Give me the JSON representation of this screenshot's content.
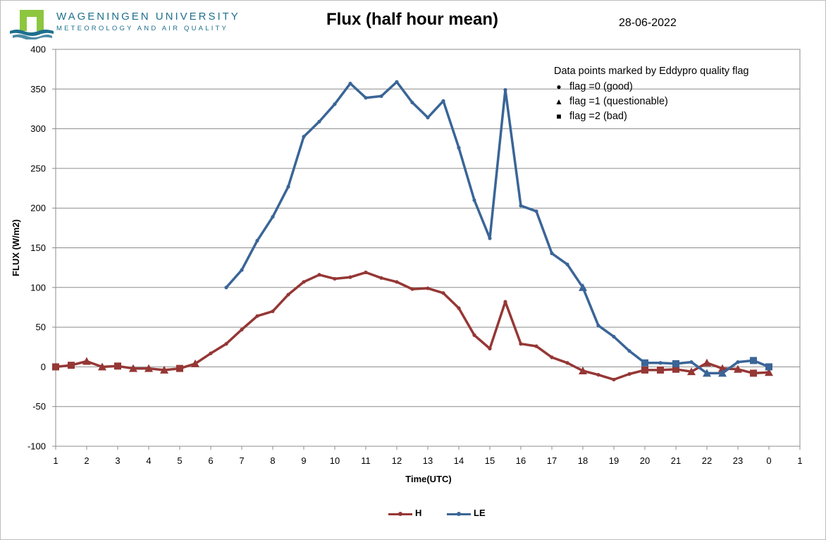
{
  "header": {
    "university": "WAGENINGEN UNIVERSITY",
    "department": "METEOROLOGY AND AIR QUALITY",
    "date": "28-06-2022"
  },
  "annotation": {
    "heading": "Data points marked by  Eddypro quality flag",
    "items": [
      {
        "symbol": "●",
        "text": "flag =0 (good)"
      },
      {
        "symbol": "▲",
        "text": "flag =1 (questionable)"
      },
      {
        "symbol": "■",
        "text": "flag =2 (bad)"
      }
    ]
  },
  "chart_data": {
    "type": "line",
    "title": "Flux (half hour mean)",
    "xlabel": "Time(UTC)",
    "ylabel": "FLUX (W/m2)",
    "ylim": [
      -100,
      400
    ],
    "yticks": [
      -100,
      -50,
      0,
      50,
      100,
      150,
      200,
      250,
      300,
      350,
      400
    ],
    "xlim": [
      1,
      25
    ],
    "xtick_labels": [
      "1",
      "2",
      "3",
      "4",
      "5",
      "6",
      "7",
      "8",
      "9",
      "10",
      "11",
      "12",
      "13",
      "14",
      "15",
      "16",
      "17",
      "18",
      "19",
      "20",
      "21",
      "22",
      "23",
      "0",
      "1"
    ],
    "grid": "horizontal",
    "legend": "bottom",
    "x": [
      1,
      1.5,
      2,
      2.5,
      3,
      3.5,
      4,
      4.5,
      5,
      5.5,
      6,
      6.5,
      7,
      7.5,
      8,
      8.5,
      9,
      9.5,
      10,
      10.5,
      11,
      11.5,
      12,
      12.5,
      13,
      13.5,
      14,
      14.5,
      15,
      15.5,
      16,
      16.5,
      17,
      17.5,
      18,
      18.5,
      19,
      19.5,
      20,
      20.5,
      21,
      21.5,
      22,
      22.5,
      23,
      23.5,
      24
    ],
    "series": [
      {
        "name": "H",
        "color": "#953735",
        "values": [
          0,
          2,
          7,
          0,
          1,
          -2,
          -2,
          -4,
          -2,
          4,
          17,
          29,
          47,
          64,
          70,
          91,
          107,
          116,
          111,
          113,
          119,
          112,
          107,
          98,
          99,
          93,
          74,
          40,
          23,
          82,
          29,
          26,
          12,
          5,
          -5,
          -10,
          -16,
          -9,
          -4,
          -4,
          -3,
          -6,
          5,
          -2,
          -3,
          -8,
          -7
        ],
        "flags": [
          2,
          2,
          1,
          1,
          2,
          1,
          1,
          1,
          2,
          1,
          0,
          0,
          0,
          0,
          0,
          0,
          0,
          0,
          0,
          0,
          0,
          0,
          0,
          0,
          0,
          0,
          0,
          0,
          0,
          0,
          0,
          0,
          0,
          0,
          1,
          0,
          0,
          0,
          2,
          2,
          2,
          1,
          1,
          1,
          1,
          2,
          1
        ]
      },
      {
        "name": "LE",
        "color": "#3a6597",
        "values": [
          null,
          null,
          null,
          null,
          null,
          null,
          null,
          null,
          null,
          null,
          null,
          100,
          122,
          159,
          189,
          227,
          290,
          309,
          331,
          357,
          339,
          341,
          359,
          333,
          314,
          335,
          276,
          210,
          162,
          349,
          203,
          196,
          143,
          129,
          100,
          52,
          38,
          20,
          5,
          5,
          4,
          6,
          -8,
          -8,
          6,
          8,
          0
        ],
        "flags": [
          null,
          null,
          null,
          null,
          null,
          null,
          null,
          null,
          null,
          null,
          null,
          0,
          0,
          0,
          0,
          0,
          0,
          0,
          0,
          0,
          0,
          0,
          0,
          0,
          0,
          0,
          0,
          0,
          0,
          0,
          0,
          0,
          0,
          0,
          1,
          0,
          0,
          0,
          2,
          0,
          2,
          0,
          1,
          1,
          0,
          2,
          2
        ]
      }
    ]
  }
}
